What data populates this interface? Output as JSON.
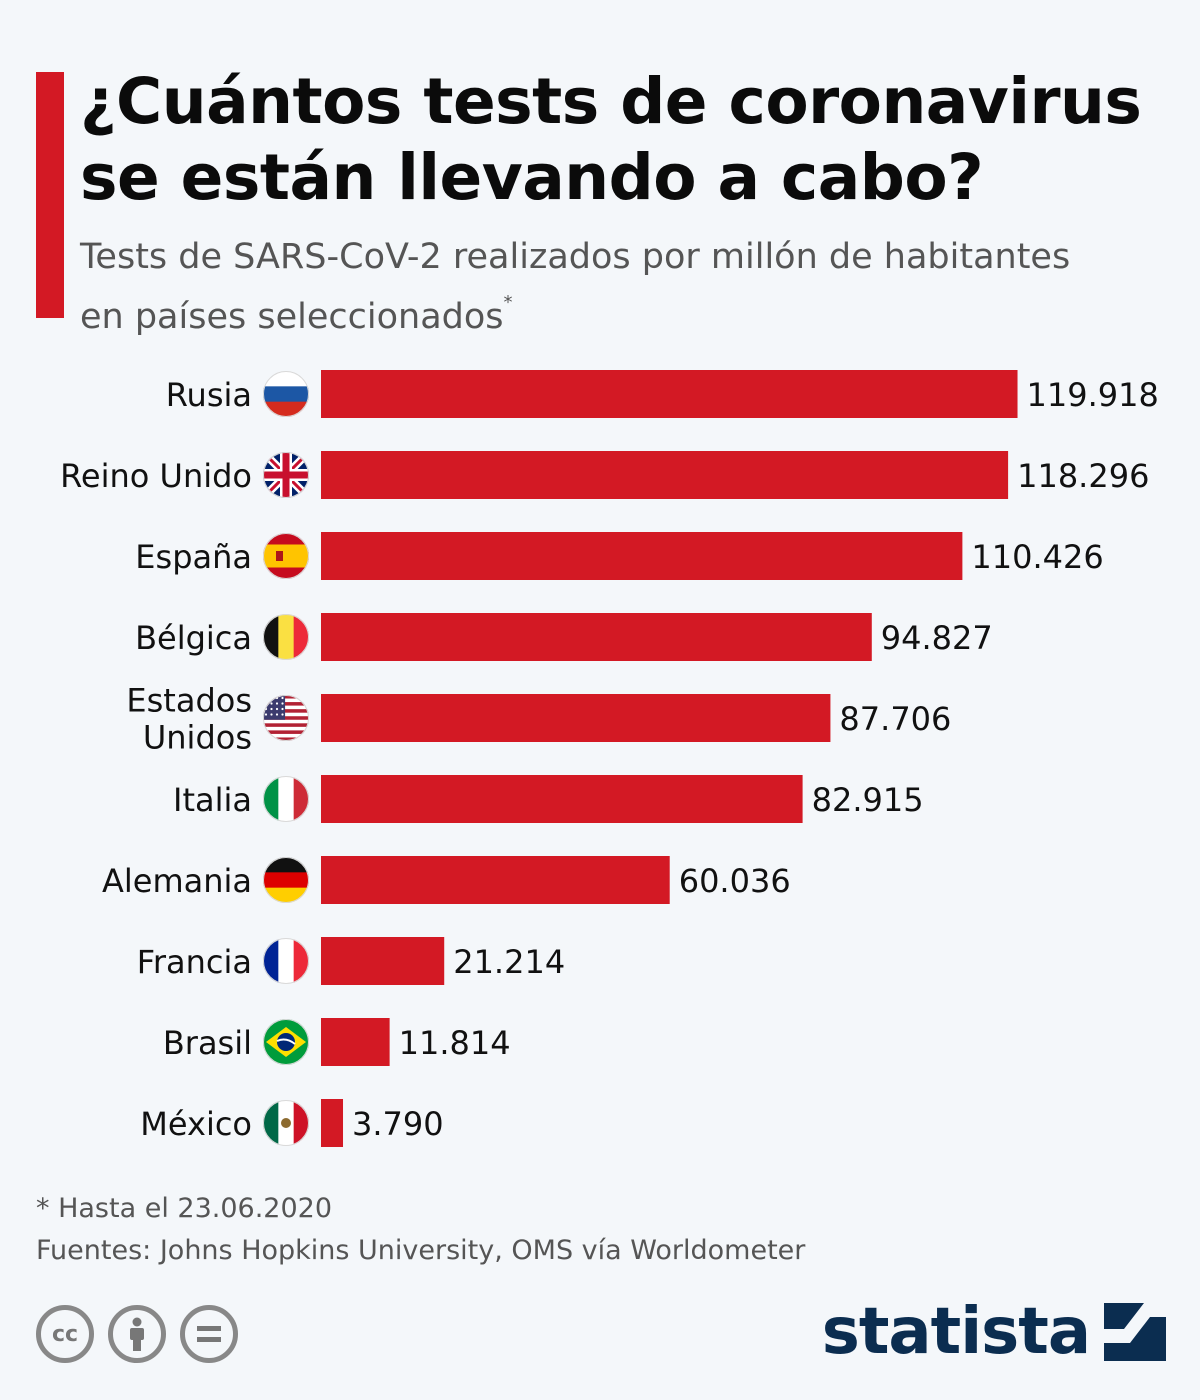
{
  "header": {
    "title_line1": "¿Cuántos tests de coronavirus",
    "title_line2": "se están llevando a cabo?",
    "subtitle_line1": "Tests de SARS-CoV-2 realizados por millón de habitantes",
    "subtitle_line2": "en países seleccionados",
    "subtitle_mark": "*"
  },
  "chart_data": {
    "type": "bar",
    "orientation": "horizontal",
    "categories": [
      [
        "Rusia"
      ],
      [
        "Reino Unido"
      ],
      [
        "España"
      ],
      [
        "Bélgica"
      ],
      [
        "Estados",
        "Unidos"
      ],
      [
        "Italia"
      ],
      [
        "Alemania"
      ],
      [
        "Francia"
      ],
      [
        "Brasil"
      ],
      [
        "México"
      ]
    ],
    "values": [
      119918,
      118296,
      110426,
      94827,
      87706,
      82915,
      60036,
      21214,
      11814,
      3790
    ],
    "value_labels": [
      "119.918",
      "118.296",
      "110.426",
      "94.827",
      "87.706",
      "82.915",
      "60.036",
      "21.214",
      "11.814",
      "3.790"
    ],
    "flags": [
      "russia-flag",
      "uk-flag",
      "spain-flag",
      "belgium-flag",
      "usa-flag",
      "italy-flag",
      "germany-flag",
      "france-flag",
      "brazil-flag",
      "mexico-flag"
    ],
    "bar_color": "#d31924",
    "xlim": [
      0,
      120000
    ],
    "grid": false
  },
  "footer": {
    "footnote": "* Hasta el 23.06.2020",
    "source": "Fuentes: Johns Hopkins University, OMS vía Worldometer",
    "license_icons": [
      "cc-icon",
      "by-person-icon",
      "nd-equals-icon"
    ],
    "brand": "statista",
    "brand_color": "#0b2d50"
  }
}
